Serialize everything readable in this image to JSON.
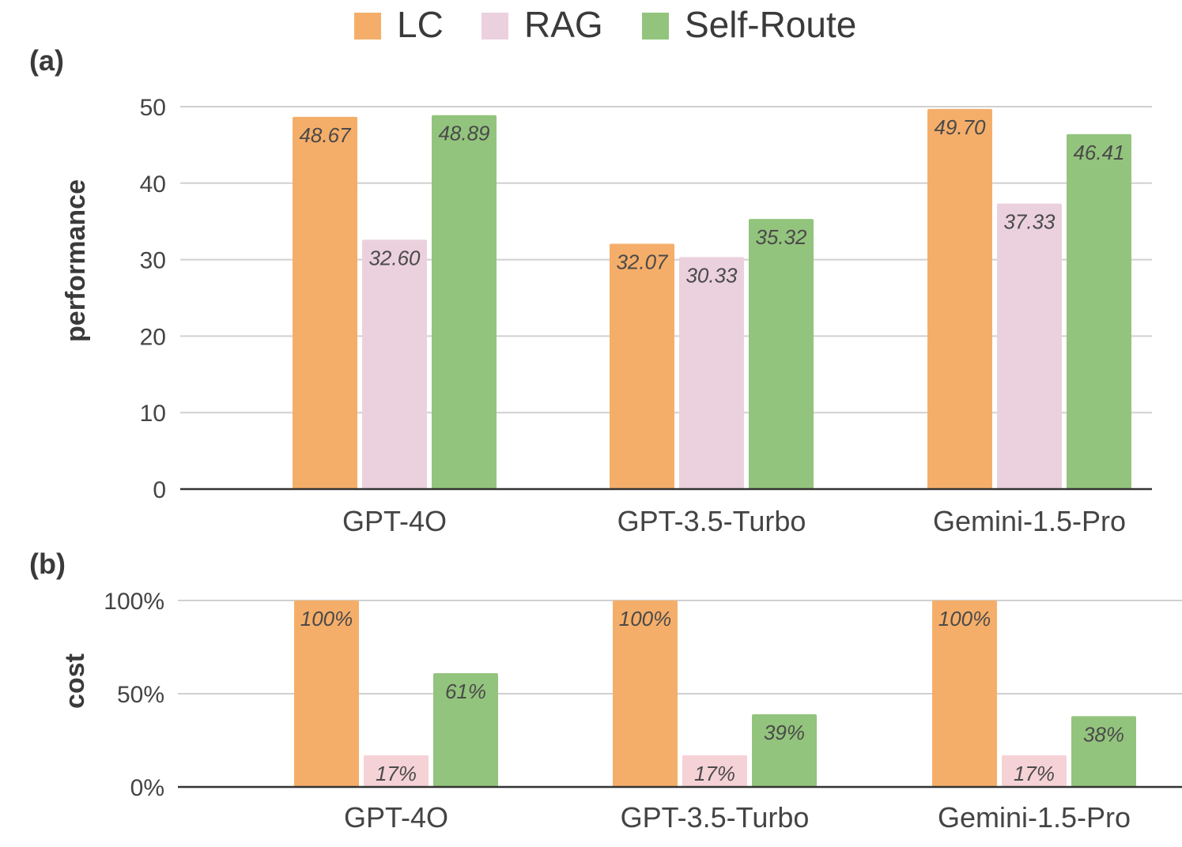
{
  "legend": [
    {
      "name": "LC",
      "color": "#f5ae69"
    },
    {
      "name": "RAG",
      "color": "#ebd1dd"
    },
    {
      "name": "Self-Route",
      "color": "#93c47d"
    }
  ],
  "chart_data": [
    {
      "panel_label": "(a)",
      "type": "bar",
      "ylabel": "performance",
      "ylim": [
        0,
        50
      ],
      "yticks": [
        "0",
        "10",
        "20",
        "30",
        "40",
        "50"
      ],
      "grid": true,
      "categories": [
        "GPT-4O",
        "GPT-3.5-Turbo",
        "Gemini-1.5-Pro"
      ],
      "series": [
        {
          "name": "LC",
          "color": "#f5ae69",
          "values": [
            48.67,
            32.07,
            49.7
          ],
          "labels": [
            "48.67",
            "32.07",
            "49.70"
          ]
        },
        {
          "name": "RAG",
          "color": "#ebd1dd",
          "values": [
            32.6,
            30.33,
            37.33
          ],
          "labels": [
            "32.60",
            "30.33",
            "37.33"
          ]
        },
        {
          "name": "Self-Route",
          "color": "#93c47d",
          "values": [
            48.89,
            35.32,
            46.41
          ],
          "labels": [
            "48.89",
            "35.32",
            "46.41"
          ]
        }
      ]
    },
    {
      "panel_label": "(b)",
      "type": "bar",
      "ylabel": "cost",
      "ylim": [
        0,
        100
      ],
      "yticks": [
        "0%",
        "50%",
        "100%"
      ],
      "grid": true,
      "categories": [
        "GPT-4O",
        "GPT-3.5-Turbo",
        "Gemini-1.5-Pro"
      ],
      "series": [
        {
          "name": "LC",
          "color": "#f5ae69",
          "values": [
            100,
            100,
            100
          ],
          "labels": [
            "100%",
            "100%",
            "100%"
          ]
        },
        {
          "name": "RAG",
          "color": "#f5d2d6",
          "values": [
            17,
            17,
            17
          ],
          "labels": [
            "17%",
            "17%",
            "17%"
          ]
        },
        {
          "name": "Self-Route",
          "color": "#93c47d",
          "values": [
            61,
            39,
            38
          ],
          "labels": [
            "61%",
            "39%",
            "38%"
          ]
        }
      ]
    }
  ]
}
